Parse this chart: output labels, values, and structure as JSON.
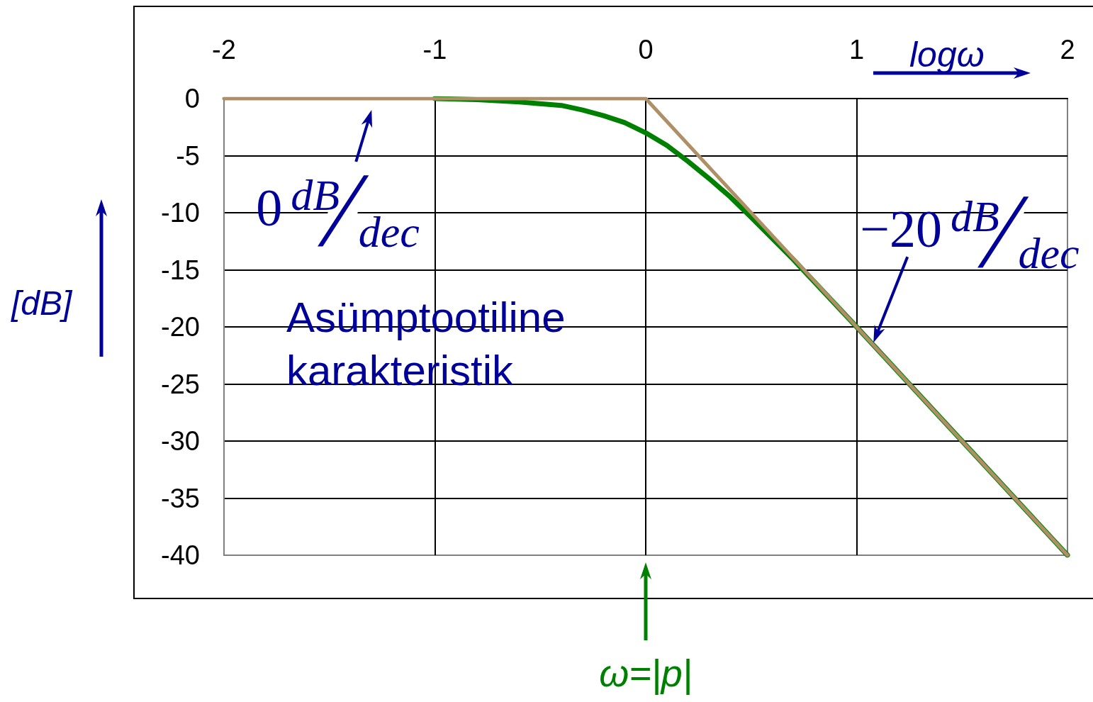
{
  "chart_data": {
    "type": "line",
    "xlabel": "logω",
    "ylabel": "[dB]",
    "xlim": [
      -2,
      2
    ],
    "xticks": [
      -2,
      -1,
      0,
      1,
      2
    ],
    "ylim": [
      -40,
      0
    ],
    "yticks": [
      -40,
      -35,
      -30,
      -25,
      -20,
      -15,
      -10,
      -5,
      0
    ],
    "grid": true,
    "marker": "none",
    "series": [
      {
        "color": "#008000",
        "x": [
          -1,
          -0.8,
          -0.6,
          -0.4,
          -0.3,
          -0.2,
          -0.1,
          0,
          0.1,
          0.2,
          0.3,
          0.4,
          0.5,
          0.7,
          1,
          1.3,
          1.6,
          2
        ],
        "values": [
          0,
          -0.1,
          -0.3,
          -0.6,
          -1,
          -1.5,
          -2.1,
          -3,
          -4.1,
          -5.5,
          -7,
          -8.6,
          -10.4,
          -14.1,
          -20,
          -26,
          -32,
          -40
        ]
      },
      {
        "color": "#ae8f66",
        "x": [
          -2,
          0,
          2
        ],
        "values": [
          0,
          0,
          -40
        ]
      }
    ],
    "annotations": [
      "Asümptootiline karakteristik",
      {
        "text": "0$^{dB}$/$_{dec}$",
        "x": -1.3,
        "y": 0
      },
      {
        "text": "−20$^{dB}$/$_{dec}$",
        "x": 1.1,
        "y": -22
      },
      "ω=|p|"
    ]
  }
}
